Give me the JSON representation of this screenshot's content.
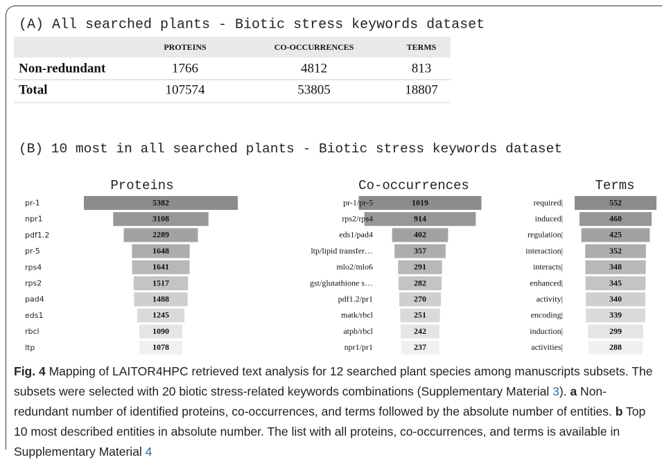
{
  "section_a": {
    "title": "(A) All searched plants - Biotic stress keywords dataset",
    "table": {
      "header": [
        "PROTEINS",
        "CO-OCCURRENCES",
        "TERMS"
      ],
      "rows": [
        {
          "label": "Non-redundant",
          "values": [
            1766,
            4812,
            813
          ]
        },
        {
          "label": "Total",
          "values": [
            107574,
            53805,
            18807
          ]
        }
      ]
    }
  },
  "section_b": {
    "title": "(B) 10 most in all searched plants - Biotic stress keywords dataset",
    "charts": [
      {
        "type": "bar",
        "title": "Proteins",
        "categories": [
          "pr-1",
          "npr1",
          "pdf1.2",
          "pr-5",
          "rps4",
          "rps2",
          "pad4",
          "eds1",
          "rbcl",
          "ltp"
        ],
        "values": [
          5382,
          3108,
          2289,
          1648,
          1641,
          1517,
          1488,
          1245,
          1090,
          1078
        ]
      },
      {
        "type": "bar",
        "title": "Co-occurrences",
        "categories": [
          "pr-1/pr-5",
          "rps2/rps4",
          "eds1/pad4",
          "ltp/lipid transfer…",
          "mlo2/mlo6",
          "gst/glutathione s…",
          "pdf1.2/pr1",
          "matk/rbcl",
          "atpb/rbcl",
          "npr1/pr1"
        ],
        "values": [
          1019,
          914,
          402,
          357,
          291,
          282,
          270,
          251,
          242,
          237
        ]
      },
      {
        "type": "bar",
        "title": "Terms",
        "categories": [
          "required|",
          "induced|",
          "regulation|",
          "interaction|",
          "interacts|",
          "enhanced|",
          "activity|",
          "encoding|",
          "induction|",
          "activities|"
        ],
        "values": [
          552,
          460,
          425,
          352,
          348,
          345,
          340,
          339,
          299,
          288
        ]
      }
    ]
  },
  "caption": [
    "Fig. 4",
    " Mapping of LAITOR4HPC retrieved text analysis for 12 searched plant species among manuscripts subsets. The subsets were selected with 20 biotic stress-related keywords combinations (Supplementary Material ",
    "3",
    "). ",
    "a",
    " Non-redundant number of identified proteins, co-occurrences, and terms followed by the absolute number of entities. ",
    "b",
    " Top 10 most described entities in absolute number. The list with all proteins, co-occurrences, and terms is available in Supplementary Material ",
    "4"
  ]
}
